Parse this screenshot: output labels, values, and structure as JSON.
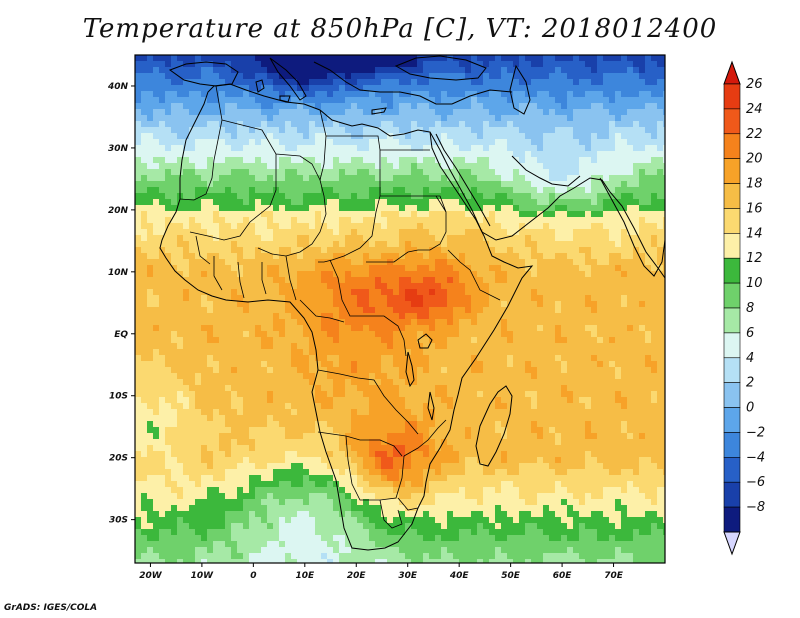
{
  "title": "Temperature at 850hPa [C], VT: 2018012400",
  "footer": "GrADS: IGES/COLA",
  "map": {
    "lon_range": [
      -23,
      80
    ],
    "lat_range": [
      -37,
      45
    ],
    "lon_ticks": [
      {
        "value": -20,
        "label": "20W"
      },
      {
        "value": -10,
        "label": "10W"
      },
      {
        "value": 0,
        "label": "0"
      },
      {
        "value": 10,
        "label": "10E"
      },
      {
        "value": 20,
        "label": "20E"
      },
      {
        "value": 30,
        "label": "30E"
      },
      {
        "value": 40,
        "label": "40E"
      },
      {
        "value": 50,
        "label": "50E"
      },
      {
        "value": 60,
        "label": "60E"
      },
      {
        "value": 70,
        "label": "70E"
      }
    ],
    "lat_ticks": [
      {
        "value": 40,
        "label": "40N"
      },
      {
        "value": 30,
        "label": "30N"
      },
      {
        "value": 20,
        "label": "20N"
      },
      {
        "value": 10,
        "label": "10N"
      },
      {
        "value": 0,
        "label": "EQ"
      },
      {
        "value": -10,
        "label": "10S"
      },
      {
        "value": -20,
        "label": "20S"
      },
      {
        "value": -30,
        "label": "30S"
      }
    ]
  },
  "colorbar": {
    "levels": [
      "26",
      "24",
      "22",
      "20",
      "18",
      "16",
      "14",
      "12",
      "10",
      "8",
      "6",
      "4",
      "2",
      "0",
      "-2",
      "-4",
      "-6",
      "-8"
    ],
    "colors": [
      "#e63c12",
      "#f0591a",
      "#f5821c",
      "#f7a228",
      "#f6bd46",
      "#fbd970",
      "#fdf0a8",
      "#3cb83c",
      "#6fd16b",
      "#a6e9a6",
      "#dcf6f2",
      "#b5e0f5",
      "#8ac3f0",
      "#5da6ea",
      "#3d86dc",
      "#2760c7",
      "#1940aa",
      "#0e1b7e"
    ],
    "top_color": "#d4190c",
    "bottom_color": "#d6d6ff"
  },
  "field": {
    "palette": [
      "#0e1b7e",
      "#1940aa",
      "#2760c7",
      "#3d86dc",
      "#5da6ea",
      "#8ac3f0",
      "#b5e0f5",
      "#dcf6f2",
      "#a6e9a6",
      "#6fd16b",
      "#3cb83c",
      "#fdf0a8",
      "#fbd970",
      "#f6bd46",
      "#f7a228",
      "#f5821c",
      "#f0591a",
      "#e63c12",
      "#d4190c"
    ],
    "base_level": -8,
    "level_step": 2
  }
}
